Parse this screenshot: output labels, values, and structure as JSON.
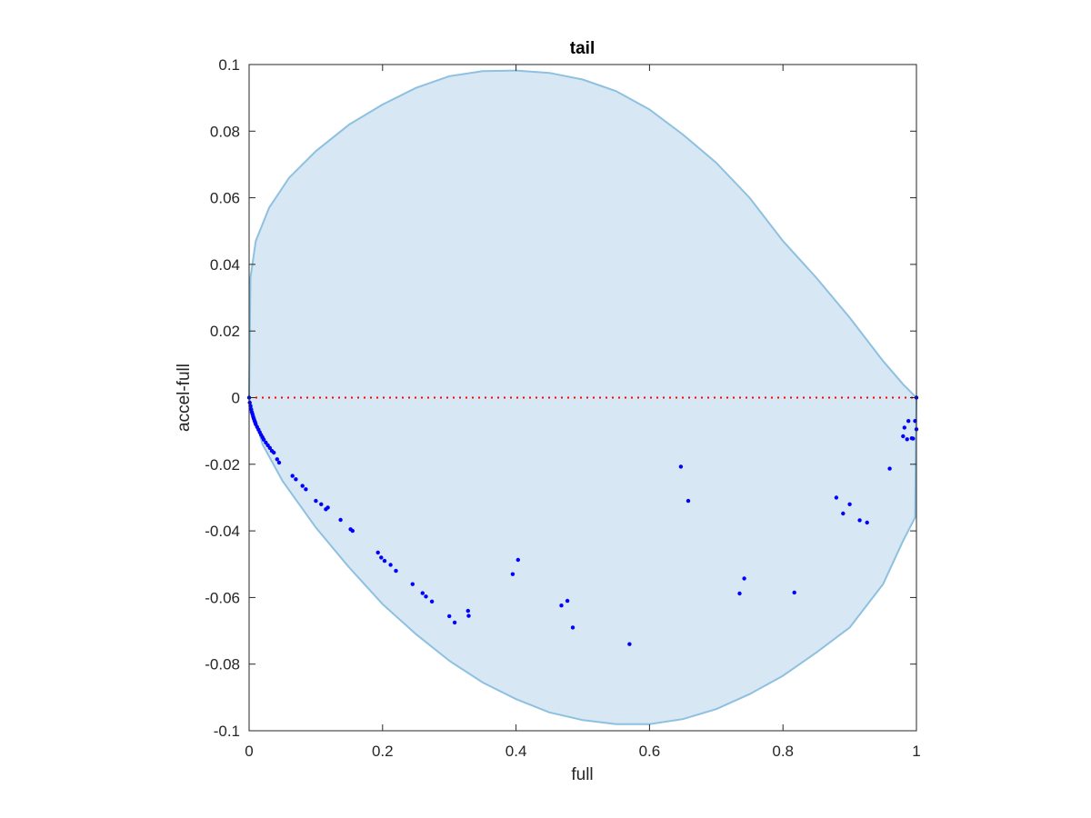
{
  "chart_data": {
    "type": "scatter",
    "title": "tail",
    "xlabel": "full",
    "ylabel": "accel-full",
    "xlim": [
      0,
      1
    ],
    "ylim": [
      -0.1,
      0.1
    ],
    "xticks": [
      "0",
      "0.2",
      "0.4",
      "0.6",
      "0.8",
      "1"
    ],
    "yticks": [
      "-0.1",
      "-0.08",
      "-0.06",
      "-0.04",
      "-0.02",
      "0",
      "0.02",
      "0.04",
      "0.06",
      "0.08",
      "0.1"
    ],
    "grid": false,
    "reference_line": {
      "y": 0,
      "style": "dotted",
      "color": "#ff0000"
    },
    "region": {
      "description": "shaded region",
      "fill": "#d7e8f4",
      "stroke": "#8ec0e0",
      "upper": [
        [
          0,
          0
        ],
        [
          0.002,
          0.036
        ],
        [
          0.01,
          0.047
        ],
        [
          0.03,
          0.057
        ],
        [
          0.06,
          0.066
        ],
        [
          0.1,
          0.074
        ],
        [
          0.15,
          0.082
        ],
        [
          0.2,
          0.088
        ],
        [
          0.25,
          0.093
        ],
        [
          0.3,
          0.0965
        ],
        [
          0.35,
          0.098
        ],
        [
          0.4,
          0.0982
        ],
        [
          0.45,
          0.0975
        ],
        [
          0.5,
          0.0955
        ],
        [
          0.55,
          0.092
        ],
        [
          0.6,
          0.0865
        ],
        [
          0.65,
          0.079
        ],
        [
          0.7,
          0.0705
        ],
        [
          0.75,
          0.06
        ],
        [
          0.8,
          0.047
        ],
        [
          0.85,
          0.036
        ],
        [
          0.9,
          0.024
        ],
        [
          0.95,
          0.011
        ],
        [
          0.98,
          0.004
        ],
        [
          1.0,
          0
        ]
      ],
      "lower": [
        [
          0,
          0
        ],
        [
          0.02,
          -0.014
        ],
        [
          0.05,
          -0.025
        ],
        [
          0.1,
          -0.039
        ],
        [
          0.15,
          -0.051
        ],
        [
          0.2,
          -0.062
        ],
        [
          0.25,
          -0.071
        ],
        [
          0.3,
          -0.079
        ],
        [
          0.35,
          -0.0855
        ],
        [
          0.4,
          -0.0905
        ],
        [
          0.45,
          -0.0945
        ],
        [
          0.5,
          -0.0968
        ],
        [
          0.55,
          -0.098
        ],
        [
          0.6,
          -0.098
        ],
        [
          0.65,
          -0.0965
        ],
        [
          0.7,
          -0.0935
        ],
        [
          0.75,
          -0.089
        ],
        [
          0.8,
          -0.0835
        ],
        [
          0.85,
          -0.0765
        ],
        [
          0.9,
          -0.069
        ],
        [
          0.95,
          -0.056
        ],
        [
          0.98,
          -0.043
        ],
        [
          0.998,
          -0.036
        ],
        [
          1.0,
          0
        ]
      ]
    },
    "series": [
      {
        "color": "#0000ff",
        "x": [
          0.0,
          0.001,
          0.002,
          0.003,
          0.004,
          0.005,
          0.006,
          0.007,
          0.008,
          0.009,
          0.01,
          0.012,
          0.014,
          0.016,
          0.018,
          0.02,
          0.022,
          0.025,
          0.028,
          0.031,
          0.034,
          0.037,
          0.042,
          0.045,
          0.065,
          0.07,
          0.08,
          0.085,
          0.1,
          0.108,
          0.115,
          0.118,
          0.137,
          0.152,
          0.155,
          0.193,
          0.198,
          0.203,
          0.212,
          0.22,
          0.245,
          0.26,
          0.265,
          0.274,
          0.3,
          0.308,
          0.328,
          0.329,
          0.395,
          0.403,
          0.468,
          0.477,
          0.485,
          0.57,
          0.647,
          0.658,
          0.735,
          0.742,
          0.817,
          0.88,
          0.89,
          0.9,
          0.915,
          0.926,
          0.96,
          0.98,
          0.982,
          0.986,
          0.988,
          0.993,
          0.995,
          0.998,
          1.0,
          1.0
        ],
        "y": [
          0.0,
          -0.0015,
          -0.0025,
          -0.0035,
          -0.0043,
          -0.005,
          -0.0057,
          -0.0063,
          -0.0069,
          -0.0074,
          -0.008,
          -0.0088,
          -0.0096,
          -0.0104,
          -0.0112,
          -0.0119,
          -0.0126,
          -0.0135,
          -0.0143,
          -0.0151,
          -0.016,
          -0.0165,
          -0.0185,
          -0.0195,
          -0.0235,
          -0.0245,
          -0.0265,
          -0.0275,
          -0.031,
          -0.032,
          -0.0335,
          -0.033,
          -0.0367,
          -0.0395,
          -0.04,
          -0.0465,
          -0.048,
          -0.049,
          -0.0502,
          -0.052,
          -0.056,
          -0.0587,
          -0.0597,
          -0.0612,
          -0.0656,
          -0.0675,
          -0.064,
          -0.0655,
          -0.053,
          -0.0487,
          -0.0624,
          -0.061,
          -0.069,
          -0.074,
          -0.0207,
          -0.031,
          -0.0588,
          -0.0543,
          -0.0585,
          -0.03,
          -0.0348,
          -0.032,
          -0.0368,
          -0.0375,
          -0.0213,
          -0.0116,
          -0.009,
          -0.0125,
          -0.007,
          -0.0122,
          -0.0123,
          -0.007,
          -0.0095,
          0.0
        ]
      }
    ]
  }
}
